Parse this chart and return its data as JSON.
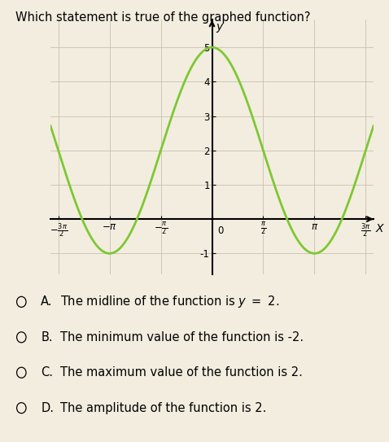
{
  "title": "Which statement is true of the graphed function?",
  "title_fontsize": 10.5,
  "func_color": "#7dc832",
  "func_linewidth": 2.0,
  "amplitude": 3,
  "vertical_shift": 2,
  "xlim": [
    -4.95,
    4.95
  ],
  "ylim": [
    -1.6,
    5.8
  ],
  "ytick_positions": [
    -1,
    1,
    2,
    3,
    4,
    5
  ],
  "ytick_labels": [
    "-1",
    "1",
    "2",
    "3",
    "4",
    "5"
  ],
  "bg_color": "#f3ede0",
  "grid_color": "#c8c0b0",
  "answer_labels": [
    "A.",
    "B.",
    "C.",
    "D."
  ],
  "answer_texts": [
    "The midline of the function is y = 2.",
    "The minimum value of the function is -2.",
    "The maximum value of the function is 2.",
    "The amplitude of the function is 2."
  ],
  "answer_fontsize": 10.5,
  "circle_fontsize": 9
}
